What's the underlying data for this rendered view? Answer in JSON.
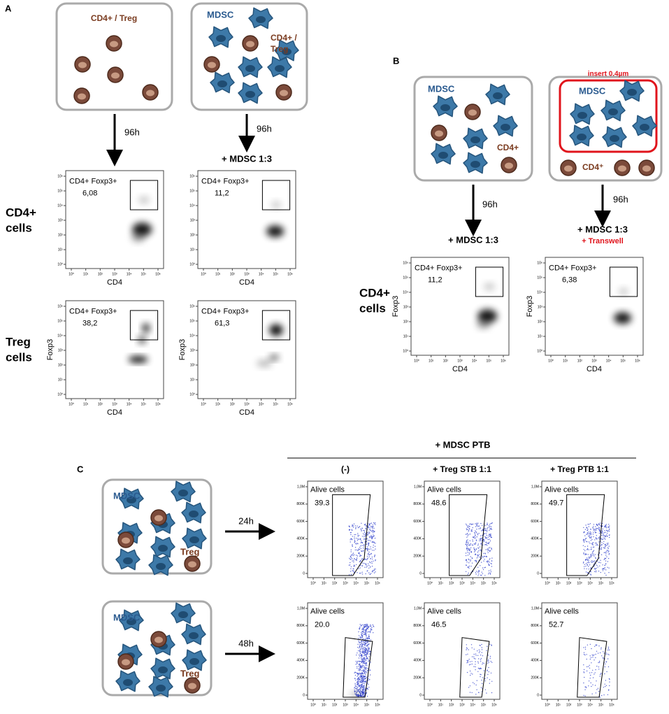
{
  "panel_labels": [
    "A",
    "B",
    "C"
  ],
  "log_ticks": [
    "10⁰",
    "10¹",
    "10²",
    "10³",
    "10⁴",
    "10⁵",
    "10⁶"
  ],
  "count_ticks": [
    "0",
    "200K",
    "400K",
    "600K",
    "800K",
    "1,0M"
  ],
  "panel_a": {
    "boxes": [
      {
        "labels": [
          "CD4+ / Treg"
        ]
      },
      {
        "labels": [
          "MDSC",
          "CD4+ /",
          "Treg"
        ]
      }
    ],
    "arrows": [
      "96h",
      "96h"
    ],
    "condition": "+ MDSC 1:3",
    "rows": [
      [
        "CD4+",
        "cells"
      ],
      [
        "Treg",
        "cells"
      ]
    ],
    "plots": [
      {
        "gate": "CD4+ Foxp3+",
        "value": "6,08",
        "x_label": "CD4"
      },
      {
        "gate": "CD4+ Foxp3+",
        "value": "11,2",
        "x_label": "CD4"
      },
      {
        "gate": "CD4+ Foxp3+",
        "value": "38,2",
        "x_label": "CD4",
        "y_label": "Foxp3"
      },
      {
        "gate": "CD4+ Foxp3+",
        "value": "61,3",
        "x_label": "CD4",
        "y_label": "Foxp3"
      }
    ]
  },
  "panel_b": {
    "boxes": [
      {
        "labels": [
          "MDSC",
          "CD4+"
        ]
      },
      {
        "insert": "insert 0.4µm",
        "labels": [
          "MDSC",
          "CD4⁺"
        ]
      }
    ],
    "arrows": [
      "96h",
      "96h"
    ],
    "conditions": [
      "+ MDSC 1:3",
      "+ MDSC 1:3"
    ],
    "transwell": "+ Transwell",
    "row": [
      "CD4+",
      "cells"
    ],
    "plots": [
      {
        "gate": "CD4+ Foxp3+",
        "value": "11,2",
        "x_label": "CD4",
        "y_label": "Foxp3"
      },
      {
        "gate": "CD4+ Foxp3+",
        "value": "6,38",
        "x_label": "CD4",
        "y_label": "Foxp3"
      }
    ]
  },
  "panel_c": {
    "header": "+ MDSC PTB",
    "columns": [
      "(-)",
      "+ Treg STB 1:1",
      "+ Treg PTB 1:1"
    ],
    "boxes": [
      {
        "labels": [
          "MDSC",
          "Treg"
        ]
      },
      {
        "labels": [
          "MDSC",
          "Treg"
        ]
      }
    ],
    "arrows": [
      "24h",
      "48h"
    ],
    "plots": [
      {
        "gate": "Alive cells",
        "value": "39.3"
      },
      {
        "gate": "Alive cells",
        "value": "48.6"
      },
      {
        "gate": "Alive cells",
        "value": "49.7"
      },
      {
        "gate": "Alive cells",
        "value": "20.0"
      },
      {
        "gate": "Alive cells",
        "value": "46.5"
      },
      {
        "gate": "Alive cells",
        "value": "52.7"
      }
    ]
  }
}
